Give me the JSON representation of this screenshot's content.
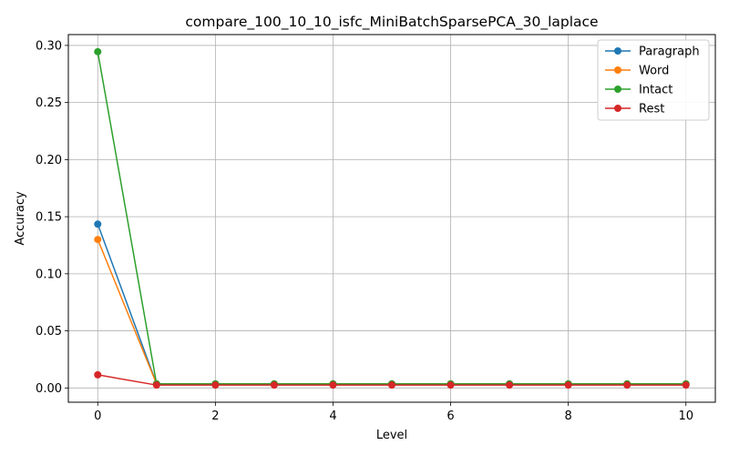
{
  "chart_data": {
    "type": "line",
    "title": "compare_100_10_10_isfc_MiniBatchSparsePCA_30_laplace",
    "xlabel": "Level",
    "ylabel": "Accuracy",
    "x": [
      0,
      1,
      2,
      3,
      4,
      5,
      6,
      7,
      8,
      9,
      10
    ],
    "xlim": [
      -0.5,
      10.5
    ],
    "ylim": [
      -0.0125,
      0.3095
    ],
    "xticks": [
      0,
      2,
      4,
      6,
      8,
      10
    ],
    "yticks": [
      0.0,
      0.05,
      0.1,
      0.15,
      0.2,
      0.25,
      0.3
    ],
    "ytick_labels": [
      "0.00",
      "0.05",
      "0.10",
      "0.15",
      "0.20",
      "0.25",
      "0.30"
    ],
    "grid": true,
    "legend_position": "top-right",
    "series": [
      {
        "name": "Paragraph",
        "color": "#1f77b4",
        "values": [
          0.1435,
          0.0035,
          0.0035,
          0.0035,
          0.0035,
          0.0035,
          0.0035,
          0.0035,
          0.0035,
          0.0035,
          0.0035
        ]
      },
      {
        "name": "Word",
        "color": "#ff7f0e",
        "values": [
          0.13,
          0.0035,
          0.0035,
          0.0035,
          0.0035,
          0.0035,
          0.0035,
          0.0035,
          0.0035,
          0.0035,
          0.0035
        ]
      },
      {
        "name": "Intact",
        "color": "#2ca02c",
        "values": [
          0.2945,
          0.0035,
          0.0035,
          0.0035,
          0.0035,
          0.0035,
          0.0035,
          0.0035,
          0.0035,
          0.0035,
          0.0035
        ]
      },
      {
        "name": "Rest",
        "color": "#d62728",
        "values": [
          0.0115,
          0.0025,
          0.0025,
          0.0025,
          0.0025,
          0.0025,
          0.0025,
          0.0025,
          0.0025,
          0.0025,
          0.0025
        ]
      }
    ]
  }
}
